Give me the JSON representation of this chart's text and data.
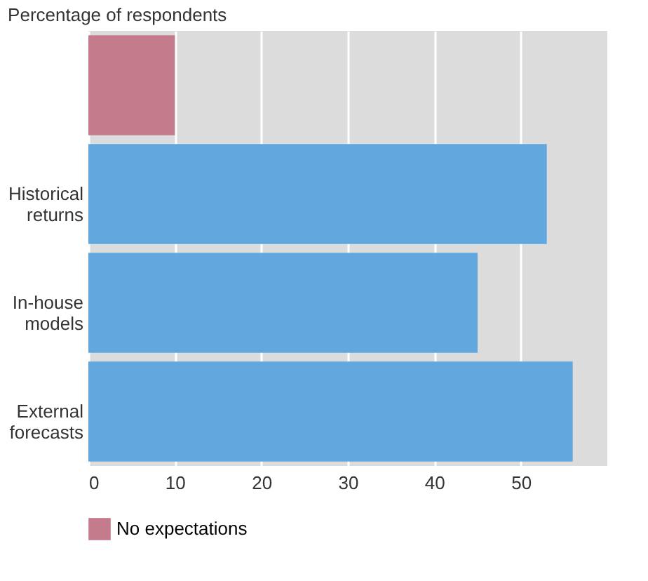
{
  "chart_data": {
    "type": "bar",
    "orientation": "horizontal",
    "title": "Percentage of respondents",
    "categories": [
      null,
      "Historical returns",
      "In-house models",
      "External forecasts"
    ],
    "series": [
      {
        "name": "No expectations",
        "color": "#c47b8b",
        "values": [
          10,
          null,
          null,
          null
        ]
      },
      {
        "color": "#62a8de",
        "values": [
          null,
          53,
          45,
          56
        ]
      }
    ],
    "xlim": [
      0,
      60
    ],
    "xticks": [
      0,
      10,
      20,
      30,
      40,
      50
    ],
    "grid": "x",
    "legend": "bottom"
  }
}
